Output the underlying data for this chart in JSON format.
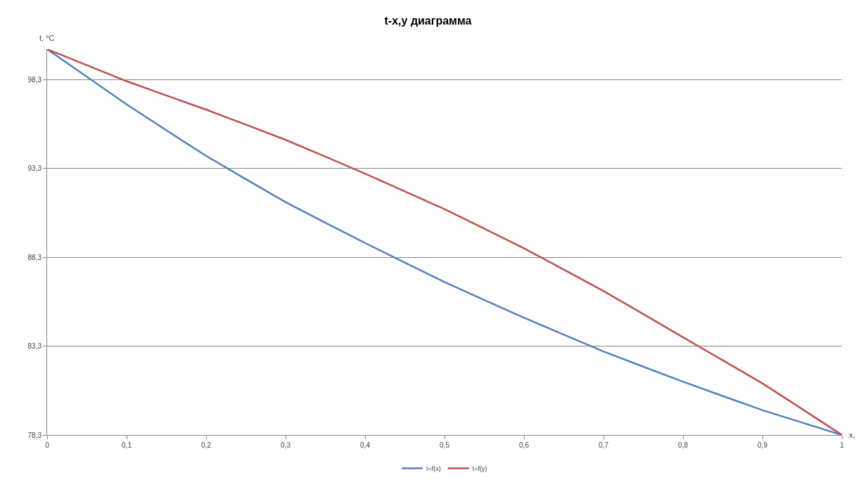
{
  "chart_data": {
    "type": "line",
    "title": "t-x,y диаграмма",
    "xlabel": "x,",
    "ylabel": "t, °C",
    "x": [
      0,
      0.1,
      0.2,
      0.3,
      0.4,
      0.5,
      0.6,
      0.7,
      0.8,
      0.9,
      1
    ],
    "series": [
      {
        "name": "t=f(x)",
        "color": "#4f81bd",
        "values": [
          100,
          96.9,
          94.0,
          91.4,
          89.1,
          86.9,
          84.9,
          83.0,
          81.3,
          79.7,
          78.3
        ]
      },
      {
        "name": "t=f(y)",
        "color": "#c0504d",
        "values": [
          100,
          98.2,
          96.6,
          94.9,
          93.0,
          91.0,
          88.8,
          86.4,
          83.8,
          81.2,
          78.3
        ]
      }
    ],
    "xlim": [
      0,
      1
    ],
    "ylim": [
      78.3,
      100
    ],
    "xticks": [
      0,
      {
        "value": 0.1,
        "label": "0,1"
      },
      {
        "value": 0.2,
        "label": "0,2"
      },
      {
        "value": 0.3,
        "label": "0,3"
      },
      {
        "value": 0.4,
        "label": "0,4"
      },
      {
        "value": 0.5,
        "label": "0,5"
      },
      {
        "value": 0.6,
        "label": "0,6"
      },
      {
        "value": 0.7,
        "label": "0,7"
      },
      {
        "value": 0.8,
        "label": "0,8"
      },
      {
        "value": 0.9,
        "label": "0,9"
      },
      1
    ],
    "yticks": [
      {
        "value": 78.3,
        "label": "78,3"
      },
      {
        "value": 83.3,
        "label": "83,3"
      },
      {
        "value": 88.3,
        "label": "88,3"
      },
      {
        "value": 93.3,
        "label": "93,3"
      },
      {
        "value": 98.3,
        "label": "98,3"
      }
    ],
    "grid": "y",
    "legend": "bottom",
    "marker": "none",
    "line_style": "solid"
  }
}
